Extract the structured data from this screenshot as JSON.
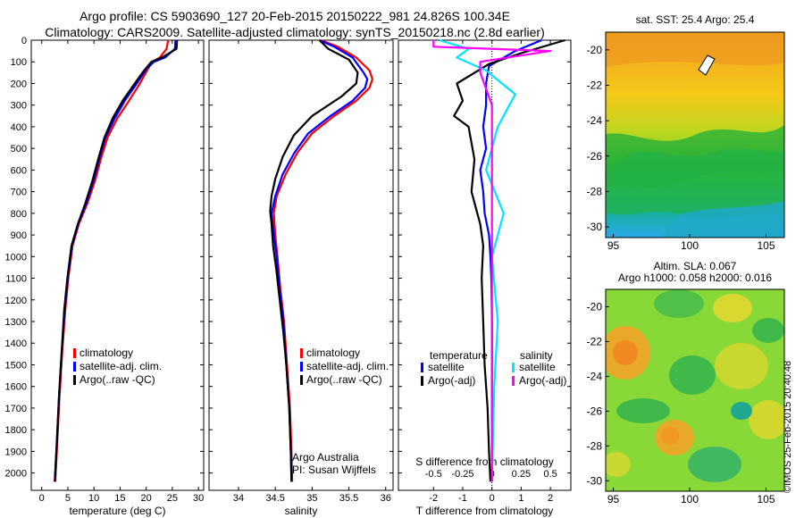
{
  "titles": {
    "line1": "Argo profile: CS 5903690_127 20-Feb-2015 20150222_981 24.826S 100.34E",
    "line2": "Climatology: CARS2009. Satellite-adjusted climatology: synTS_20150218.nc (2.8d earlier)"
  },
  "map_headers": {
    "sst": "sat. SST: 25.4  Argo: 25.4",
    "sla1": "Altim. SLA: 0.067",
    "sla2": "Argo h1000: 0.058 h2000: 0.016"
  },
  "credit": "©IMOS 25-Feb-2015 20:40:48",
  "colors": {
    "climatology": "#ff0000",
    "satellite": "#0000ff",
    "argo": "#000000",
    "sal_satellite": "#00e5ff",
    "sal_argo": "#ff00ff"
  },
  "chart_data": [
    {
      "type": "line",
      "xlabel": "temperature (deg C)",
      "ylim": [
        0,
        2080
      ],
      "xlim": [
        -2,
        31
      ],
      "y_inverted": true,
      "yticks": [
        "0",
        "100",
        "200",
        "300",
        "400",
        "500",
        "600",
        "700",
        "800",
        "900",
        "1000",
        "1100",
        "1200",
        "1300",
        "1400",
        "1500",
        "1600",
        "1700",
        "1800",
        "1900",
        "2000"
      ],
      "xticks": [
        "0",
        "5",
        "10",
        "15",
        "20",
        "25",
        "30"
      ],
      "legend": [
        "climatology",
        "satellite-adj. clim.",
        "Argo(..raw -QC)"
      ],
      "series": [
        {
          "name": "climatology",
          "color": "#ff0000",
          "points": [
            [
              24.2,
              0
            ],
            [
              23.9,
              40
            ],
            [
              22.6,
              80
            ],
            [
              21.2,
              100
            ],
            [
              20.4,
              130
            ],
            [
              18.8,
              200
            ],
            [
              16.7,
              280
            ],
            [
              14.5,
              360
            ],
            [
              12.6,
              450
            ],
            [
              11.3,
              550
            ],
            [
              10.2,
              650
            ],
            [
              8.8,
              750
            ],
            [
              7.1,
              850
            ],
            [
              5.9,
              950
            ],
            [
              5.1,
              1100
            ],
            [
              4.5,
              1250
            ],
            [
              3.9,
              1450
            ],
            [
              3.4,
              1650
            ],
            [
              3.0,
              1850
            ],
            [
              2.6,
              2040
            ]
          ]
        },
        {
          "name": "satellite-adj. clim.",
          "color": "#0000ff",
          "points": [
            [
              25.6,
              0
            ],
            [
              25.5,
              40
            ],
            [
              23.6,
              80
            ],
            [
              21.5,
              100
            ],
            [
              20.1,
              130
            ],
            [
              18.2,
              200
            ],
            [
              15.9,
              280
            ],
            [
              14.0,
              360
            ],
            [
              12.2,
              450
            ],
            [
              11.0,
              550
            ],
            [
              9.9,
              650
            ],
            [
              8.6,
              750
            ],
            [
              7.0,
              850
            ],
            [
              5.8,
              950
            ],
            [
              5.0,
              1100
            ],
            [
              4.4,
              1250
            ],
            [
              3.8,
              1450
            ],
            [
              3.3,
              1650
            ],
            [
              2.9,
              1850
            ],
            [
              2.5,
              2040
            ]
          ]
        },
        {
          "name": "Argo(..raw -QC)",
          "color": "#000000",
          "points": [
            [
              25.9,
              0
            ],
            [
              25.8,
              40
            ],
            [
              23.0,
              80
            ],
            [
              21.0,
              100
            ],
            [
              19.6,
              140
            ],
            [
              17.8,
              200
            ],
            [
              15.5,
              280
            ],
            [
              13.6,
              360
            ],
            [
              12.0,
              450
            ],
            [
              10.8,
              550
            ],
            [
              9.7,
              650
            ],
            [
              8.4,
              750
            ],
            [
              6.9,
              850
            ],
            [
              5.7,
              950
            ],
            [
              4.9,
              1100
            ],
            [
              4.3,
              1250
            ],
            [
              3.8,
              1450
            ],
            [
              3.3,
              1650
            ],
            [
              2.9,
              1850
            ],
            [
              2.5,
              2040
            ]
          ]
        }
      ]
    },
    {
      "type": "line",
      "xlabel": "salinity",
      "ylim": [
        0,
        2080
      ],
      "xlim": [
        33.6,
        36.1
      ],
      "y_inverted": true,
      "xticks": [
        "34",
        "34.5",
        "35",
        "35.5",
        "36"
      ],
      "legend": [
        "climatology",
        "satellite-adj. clim.",
        "Argo(..raw -QC)"
      ],
      "annotations": [
        "Argo Australia",
        "PI: Susan Wijffels"
      ],
      "series": [
        {
          "name": "climatology",
          "color": "#ff0000",
          "points": [
            [
              35.12,
              0
            ],
            [
              35.35,
              30
            ],
            [
              35.6,
              80
            ],
            [
              35.78,
              140
            ],
            [
              35.82,
              180
            ],
            [
              35.78,
              220
            ],
            [
              35.6,
              280
            ],
            [
              35.3,
              350
            ],
            [
              35.0,
              430
            ],
            [
              34.8,
              520
            ],
            [
              34.64,
              620
            ],
            [
              34.52,
              720
            ],
            [
              34.48,
              800
            ],
            [
              34.5,
              900
            ],
            [
              34.53,
              1000
            ],
            [
              34.57,
              1150
            ],
            [
              34.62,
              1300
            ],
            [
              34.66,
              1500
            ],
            [
              34.7,
              1700
            ],
            [
              34.72,
              1900
            ],
            [
              34.73,
              2040
            ]
          ]
        },
        {
          "name": "satellite-adj. clim.",
          "color": "#0000ff",
          "points": [
            [
              35.1,
              0
            ],
            [
              35.3,
              30
            ],
            [
              35.55,
              80
            ],
            [
              35.7,
              150
            ],
            [
              35.75,
              180
            ],
            [
              35.72,
              220
            ],
            [
              35.55,
              280
            ],
            [
              35.25,
              350
            ],
            [
              34.95,
              430
            ],
            [
              34.76,
              520
            ],
            [
              34.6,
              620
            ],
            [
              34.5,
              720
            ],
            [
              34.45,
              800
            ],
            [
              34.48,
              900
            ],
            [
              34.52,
              1000
            ],
            [
              34.56,
              1150
            ],
            [
              34.61,
              1300
            ],
            [
              34.65,
              1500
            ],
            [
              34.69,
              1700
            ],
            [
              34.71,
              1900
            ],
            [
              34.72,
              2040
            ]
          ]
        },
        {
          "name": "Argo(..raw -QC)",
          "color": "#000000",
          "points": [
            [
              35.1,
              0
            ],
            [
              35.22,
              40
            ],
            [
              35.5,
              90
            ],
            [
              35.62,
              150
            ],
            [
              35.6,
              200
            ],
            [
              35.4,
              260
            ],
            [
              35.0,
              350
            ],
            [
              34.75,
              440
            ],
            [
              34.6,
              540
            ],
            [
              34.5,
              640
            ],
            [
              34.45,
              720
            ],
            [
              34.43,
              790
            ],
            [
              34.45,
              850
            ],
            [
              34.47,
              950
            ],
            [
              34.51,
              1050
            ],
            [
              34.56,
              1200
            ],
            [
              34.61,
              1350
            ],
            [
              34.65,
              1500
            ],
            [
              34.69,
              1700
            ],
            [
              34.71,
              1900
            ],
            [
              34.72,
              2040
            ]
          ]
        }
      ]
    },
    {
      "type": "line",
      "xlabel": "T difference from climatology",
      "xlabel_top": "S difference from climatology",
      "ylim": [
        0,
        2080
      ],
      "xlim": [
        -3.2,
        2.7
      ],
      "y_inverted": true,
      "xticks": [
        "-2",
        "-1",
        "0",
        "1",
        "2"
      ],
      "xticks_top": [
        "-0.5",
        "-0.25",
        "0",
        "0.25",
        "0.5"
      ],
      "legend_headers": [
        "temperature",
        "salinity"
      ],
      "legend": [
        "satellite",
        "Argo(-adj)",
        "satellite",
        "Argo(-adj)"
      ],
      "series": [
        {
          "name": "satellite",
          "group": "temperature",
          "color": "#0000ff",
          "points": [
            [
              1.7,
              0
            ],
            [
              0.8,
              50
            ],
            [
              -0.1,
              120
            ],
            [
              -0.2,
              200
            ],
            [
              -0.2,
              300
            ],
            [
              -0.3,
              400
            ],
            [
              -0.2,
              500
            ],
            [
              -0.4,
              600
            ],
            [
              -0.3,
              700
            ],
            [
              -0.25,
              800
            ],
            [
              -0.1,
              900
            ],
            [
              -0.05,
              1000
            ],
            [
              -0.02,
              1100
            ],
            [
              0,
              1300
            ],
            [
              0,
              1600
            ],
            [
              0,
              1900
            ],
            [
              0,
              2040
            ]
          ]
        },
        {
          "name": "Argo(-adj)",
          "group": "temperature",
          "color": "#000000",
          "points": [
            [
              2.5,
              0
            ],
            [
              1.0,
              60
            ],
            [
              -0.1,
              110
            ],
            [
              -1.2,
              200
            ],
            [
              -1.0,
              280
            ],
            [
              -1.3,
              350
            ],
            [
              -0.8,
              400
            ],
            [
              -0.6,
              550
            ],
            [
              -0.7,
              700
            ],
            [
              -0.5,
              800
            ],
            [
              -0.4,
              850
            ],
            [
              -0.3,
              950
            ],
            [
              -0.35,
              1100
            ],
            [
              -0.3,
              1300
            ],
            [
              -0.25,
              1500
            ],
            [
              -0.15,
              1700
            ],
            [
              -0.1,
              1900
            ],
            [
              -0.05,
              2040
            ]
          ]
        },
        {
          "name": "satellite",
          "group": "salinity",
          "color": "#00e5ff",
          "points": [
            [
              -0.45,
              0
            ],
            [
              -0.2,
              40
            ],
            [
              -0.3,
              80
            ],
            [
              -0.05,
              140
            ],
            [
              0.2,
              250
            ],
            [
              0.05,
              400
            ],
            [
              -0.05,
              600
            ],
            [
              0.1,
              800
            ],
            [
              0.0,
              1000
            ],
            [
              0.05,
              1300
            ],
            [
              0.02,
              1600
            ],
            [
              0.0,
              2040
            ]
          ]
        },
        {
          "name": "Argo(-adj)",
          "group": "salinity",
          "color": "#ff00ff",
          "points": [
            [
              -0.5,
              0
            ],
            [
              -0.5,
              30
            ],
            [
              0.5,
              50
            ],
            [
              -0.1,
              100
            ],
            [
              -0.1,
              150
            ],
            [
              0.0,
              300
            ],
            [
              0.0,
              600
            ],
            [
              0.0,
              800
            ],
            [
              0.0,
              1000
            ],
            [
              0.0,
              1300
            ],
            [
              0.0,
              1600
            ],
            [
              0.0,
              2040
            ]
          ]
        }
      ]
    },
    {
      "type": "heatmap",
      "title": "sat. SST: 25.4  Argo: 25.4",
      "xlim": [
        94.5,
        106.2
      ],
      "ylim": [
        -30.6,
        -19.0
      ],
      "xticks": [
        "95",
        "100",
        "105"
      ],
      "yticks": [
        "-20",
        "-22",
        "-24",
        "-26",
        "-28",
        "-30"
      ]
    },
    {
      "type": "heatmap",
      "title": "Altim. SLA: 0.067 / Argo h1000: 0.058 h2000: 0.016",
      "xlim": [
        94.5,
        106.2
      ],
      "ylim": [
        -30.6,
        -19.0
      ],
      "xticks": [
        "95",
        "100",
        "105"
      ],
      "yticks": [
        "-20",
        "-22",
        "-24",
        "-26",
        "-28",
        "-30"
      ]
    }
  ]
}
